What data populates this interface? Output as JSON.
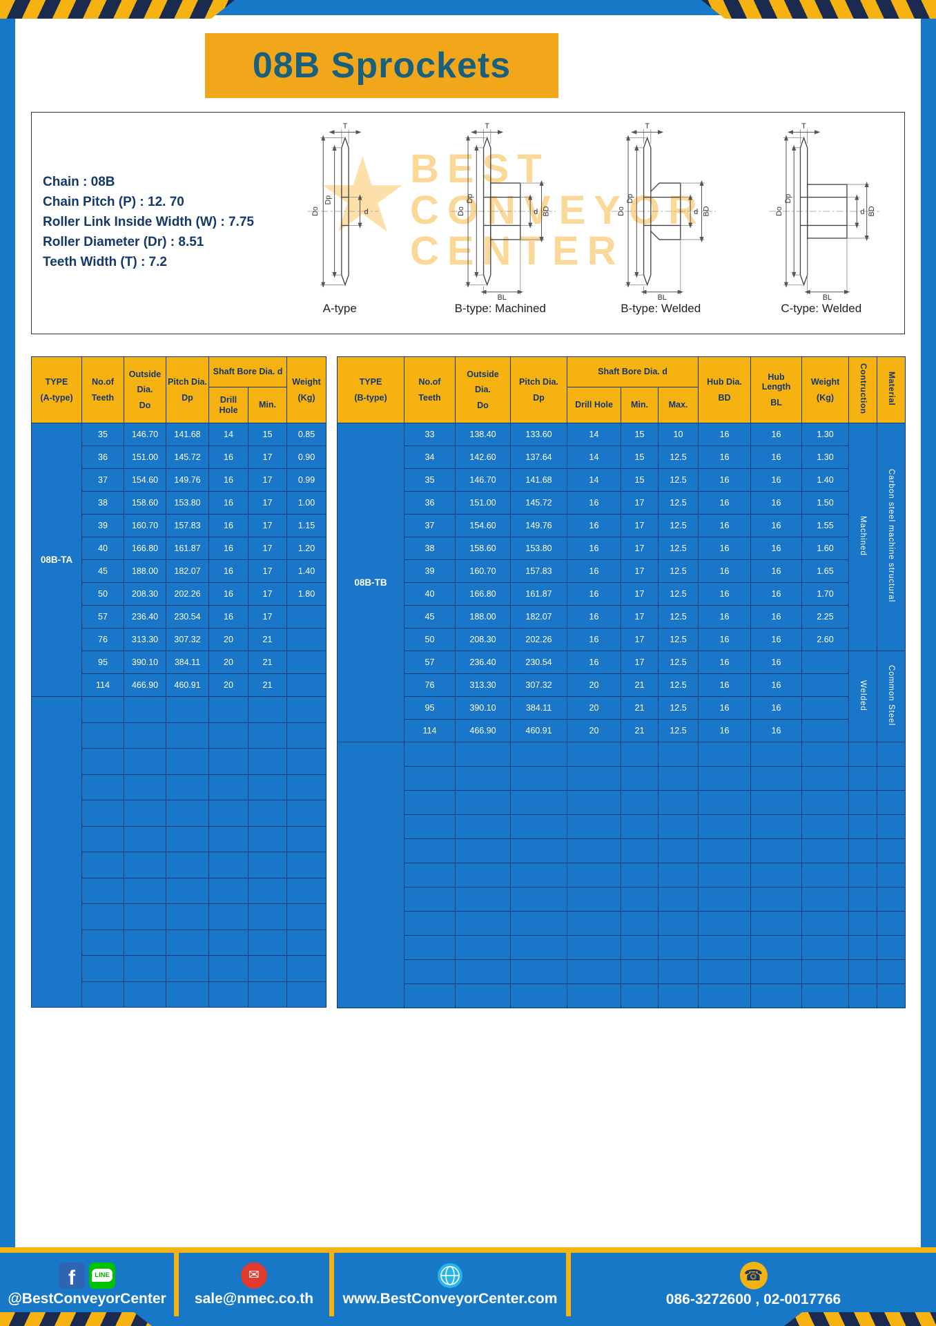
{
  "title": "08B Sprockets",
  "specs": {
    "lines": [
      "Chain  :  08B",
      "Chain Pitch (P)  :  12. 70",
      "Roller Link Inside Width (W)  :  7.75",
      "Roller Diameter (Dr)  :  8.51",
      "Teeth Width (T)  :  7.2"
    ]
  },
  "diagrams": {
    "captions": [
      "A-type",
      "B-type: Machined",
      "B-type: Welded",
      "C-type: Welded"
    ],
    "dims": {
      "T": "T",
      "Do": "Do",
      "Dp": "Dp",
      "d": "d",
      "BD": "BD",
      "BL": "BL"
    }
  },
  "watermark": {
    "star": "★",
    "lines": [
      "BEST",
      "CONVEYOR",
      "CENTER"
    ]
  },
  "table_a": {
    "type_label": "08B-TA",
    "header": {
      "type": "TYPE",
      "type_sub": "(A-type)",
      "teeth1": "No.of",
      "teeth2": "Teeth",
      "outside1": "Outside",
      "outside2": "Dia.",
      "outside3": "Do",
      "pitch1": "Pitch Dia.",
      "pitch2": "Dp",
      "shaft_bore": "Shaft Bore Dia. d",
      "drill": "Drill Hole",
      "min": "Min.",
      "weight1": "Weight",
      "weight2": "(Kg)"
    },
    "rows": [
      [
        "35",
        "146.70",
        "141.68",
        "14",
        "15",
        "0.85"
      ],
      [
        "36",
        "151.00",
        "145.72",
        "16",
        "17",
        "0.90"
      ],
      [
        "37",
        "154.60",
        "149.76",
        "16",
        "17",
        "0.99"
      ],
      [
        "38",
        "158.60",
        "153.80",
        "16",
        "17",
        "1.00"
      ],
      [
        "39",
        "160.70",
        "157.83",
        "16",
        "17",
        "1.15"
      ],
      [
        "40",
        "166.80",
        "161.87",
        "16",
        "17",
        "1.20"
      ],
      [
        "45",
        "188.00",
        "182.07",
        "16",
        "17",
        "1.40"
      ],
      [
        "50",
        "208.30",
        "202.26",
        "16",
        "17",
        "1.80"
      ],
      [
        "57",
        "236.40",
        "230.54",
        "16",
        "17",
        ""
      ],
      [
        "76",
        "313.30",
        "307.32",
        "20",
        "21",
        ""
      ],
      [
        "95",
        "390.10",
        "384.11",
        "20",
        "21",
        ""
      ],
      [
        "114",
        "466.90",
        "460.91",
        "20",
        "21",
        ""
      ]
    ],
    "empty_rows": 12
  },
  "table_b": {
    "type_label": "08B-TB",
    "header": {
      "type": "TYPE",
      "type_sub": "(B-type)",
      "teeth1": "No.of",
      "teeth2": "Teeth",
      "outside1": "Outside",
      "outside2": "Dia.",
      "outside3": "Do",
      "pitch1": "Pitch Dia.",
      "pitch2": "Dp",
      "shaft_bore": "Shaft Bore Dia. d",
      "drill": "Drill Hole",
      "min": "Min.",
      "max": "Max.",
      "hub_dia1": "Hub Dia.",
      "hub_dia2": "BD",
      "hub_len1": "Hub",
      "hub_len2": "Length",
      "hub_len3": "BL",
      "weight1": "Weight",
      "weight2": "(Kg)",
      "construction": "Contruction",
      "material": "Material"
    },
    "rows": [
      [
        "33",
        "138.40",
        "133.60",
        "14",
        "15",
        "10",
        "16",
        "16",
        "1.30"
      ],
      [
        "34",
        "142.60",
        "137.64",
        "14",
        "15",
        "12.5",
        "16",
        "16",
        "1.30"
      ],
      [
        "35",
        "146.70",
        "141.68",
        "14",
        "15",
        "12.5",
        "16",
        "16",
        "1.40"
      ],
      [
        "36",
        "151.00",
        "145.72",
        "16",
        "17",
        "12.5",
        "16",
        "16",
        "1.50"
      ],
      [
        "37",
        "154.60",
        "149.76",
        "16",
        "17",
        "12.5",
        "16",
        "16",
        "1.55"
      ],
      [
        "38",
        "158.60",
        "153.80",
        "16",
        "17",
        "12.5",
        "16",
        "16",
        "1.60"
      ],
      [
        "39",
        "160.70",
        "157.83",
        "16",
        "17",
        "12.5",
        "16",
        "16",
        "1.65"
      ],
      [
        "40",
        "166.80",
        "161.87",
        "16",
        "17",
        "12.5",
        "16",
        "16",
        "1.70"
      ],
      [
        "45",
        "188.00",
        "182.07",
        "16",
        "17",
        "12.5",
        "16",
        "16",
        "2.25"
      ],
      [
        "50",
        "208.30",
        "202.26",
        "16",
        "17",
        "12.5",
        "16",
        "16",
        "2.60"
      ],
      [
        "57",
        "236.40",
        "230.54",
        "16",
        "17",
        "12.5",
        "16",
        "16",
        ""
      ],
      [
        "76",
        "313.30",
        "307.32",
        "20",
        "21",
        "12.5",
        "16",
        "16",
        ""
      ],
      [
        "95",
        "390.10",
        "384.11",
        "20",
        "21",
        "12.5",
        "16",
        "16",
        ""
      ],
      [
        "114",
        "466.90",
        "460.91",
        "20",
        "21",
        "12.5",
        "16",
        "16",
        ""
      ]
    ],
    "construction_groups": [
      {
        "label": "Machined",
        "span": 10
      },
      {
        "label": "Welded",
        "span": 4
      }
    ],
    "material_groups": [
      {
        "label": "Carbon steel  machine structural",
        "span": 10
      },
      {
        "label": "Common  Steel",
        "span": 4
      }
    ],
    "empty_rows": 11
  },
  "footer": {
    "fb_letter": "f",
    "line_text": "LINE",
    "social": "@BestConveyorCenter",
    "email": "sale@nmec.co.th",
    "website": "www.BestConveyorCenter.com",
    "phone": "086-3272600 , 02-0017766"
  },
  "colors": {
    "frame_blue": "#1878c8",
    "cell_blue": "#1976c8",
    "header_yellow": "#f6b211",
    "banner_yellow": "#f2a71b",
    "navy_text": "#15386b",
    "border_navy": "#0d3d73",
    "title_teal": "#19607f",
    "hazard_navy": "#1b2b4f"
  }
}
